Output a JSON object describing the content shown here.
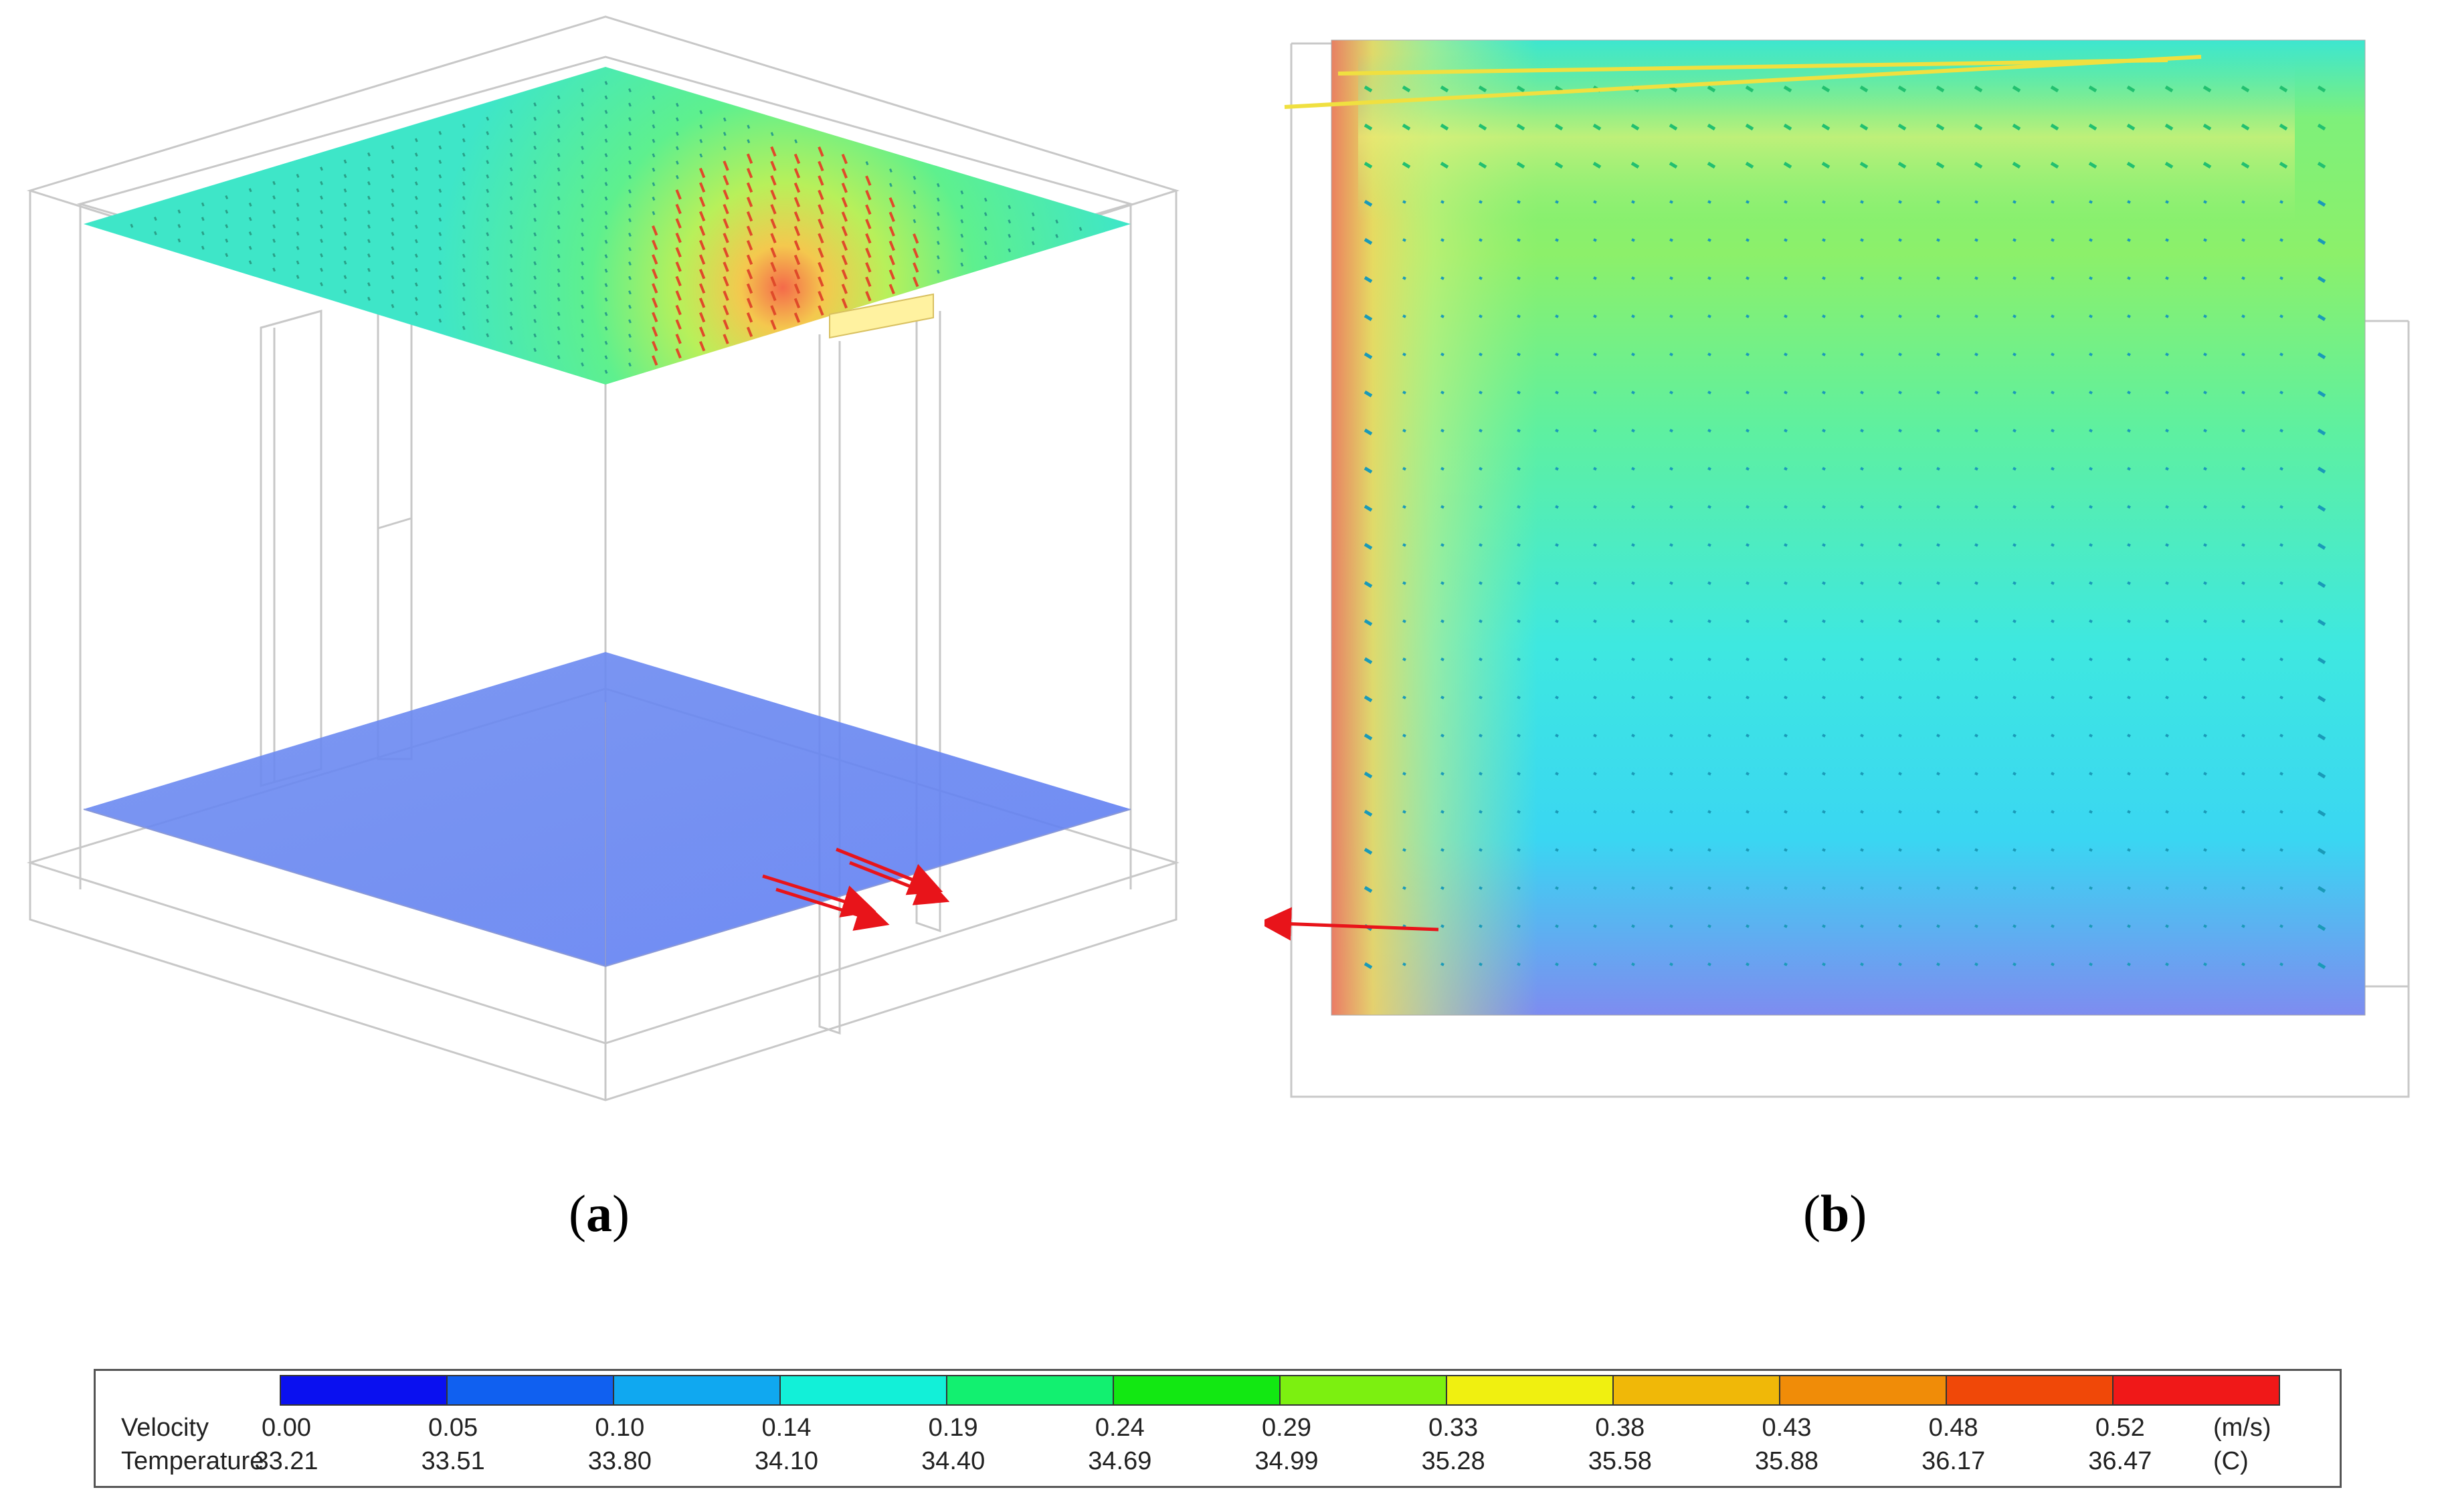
{
  "panels": [
    {
      "label": "a"
    },
    {
      "label": "b"
    }
  ],
  "legend": {
    "colors": [
      "#0a10f0",
      "#1060f0",
      "#10a8f0",
      "#12f0d8",
      "#12f070",
      "#12e812",
      "#7cf010",
      "#f0f010",
      "#f0b808",
      "#f08c08",
      "#f04808",
      "#f01818"
    ],
    "velocity": {
      "label": "Velocity",
      "unit": "(m/s)",
      "values": [
        "0.00",
        "0.05",
        "0.10",
        "0.14",
        "0.19",
        "0.24",
        "0.29",
        "0.33",
        "0.38",
        "0.43",
        "0.48",
        "0.52"
      ]
    },
    "temperature": {
      "label": "Temperature",
      "unit": "(C)",
      "values": [
        "33.21",
        "33.51",
        "33.80",
        "34.10",
        "34.40",
        "34.69",
        "34.99",
        "35.28",
        "35.58",
        "35.88",
        "36.17",
        "36.47"
      ]
    }
  }
}
